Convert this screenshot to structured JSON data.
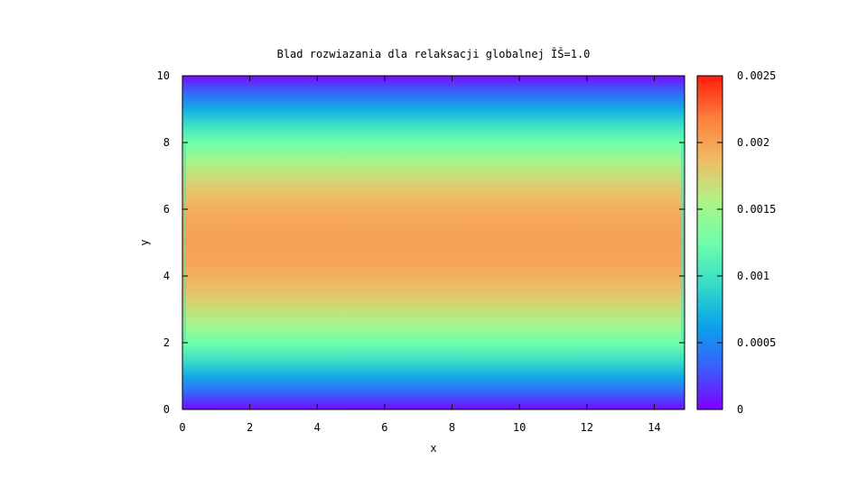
{
  "chart_data": {
    "type": "heatmap",
    "title": "Blad rozwiazania dla relaksacji globalnej ÎŠ=1.0",
    "xlabel": "x",
    "ylabel": "y",
    "xlim": [
      0,
      14.9
    ],
    "ylim": [
      0,
      10
    ],
    "x_ticks": [
      "0",
      "2",
      "4",
      "6",
      "8",
      "10",
      "12",
      "14"
    ],
    "y_ticks": [
      "0",
      "2",
      "4",
      "6",
      "8",
      "10"
    ],
    "colorbar": {
      "range": [
        0,
        0.0025
      ],
      "ticks": [
        "0",
        "0.0005",
        "0.001",
        "0.0015",
        "0.002",
        "0.0025"
      ],
      "palette": "rainbow",
      "colors": [
        "#7f00ff",
        "#3a5efc",
        "#0aa3ea",
        "#36dcc8",
        "#6ffeaa",
        "#b0f385",
        "#f0bb63",
        "#ff7d3c",
        "#ff1c0e"
      ]
    },
    "profile_y": [
      0,
      0.5,
      1,
      1.5,
      2,
      2.5,
      3,
      3.5,
      4,
      4.5,
      5,
      5.5,
      6,
      6.5,
      7,
      7.5,
      8,
      8.5,
      9,
      9.5,
      10
    ],
    "profile_values": [
      3e-05,
      0.00035,
      0.00068,
      0.00098,
      0.00125,
      0.00149,
      0.00168,
      0.00183,
      0.00193,
      0.00199,
      0.00201,
      0.00199,
      0.00193,
      0.00183,
      0.00168,
      0.00149,
      0.00125,
      0.00098,
      0.00068,
      0.00035,
      3e-05
    ],
    "edge_value_near_x_boundaries": 0.001,
    "grid": false
  }
}
